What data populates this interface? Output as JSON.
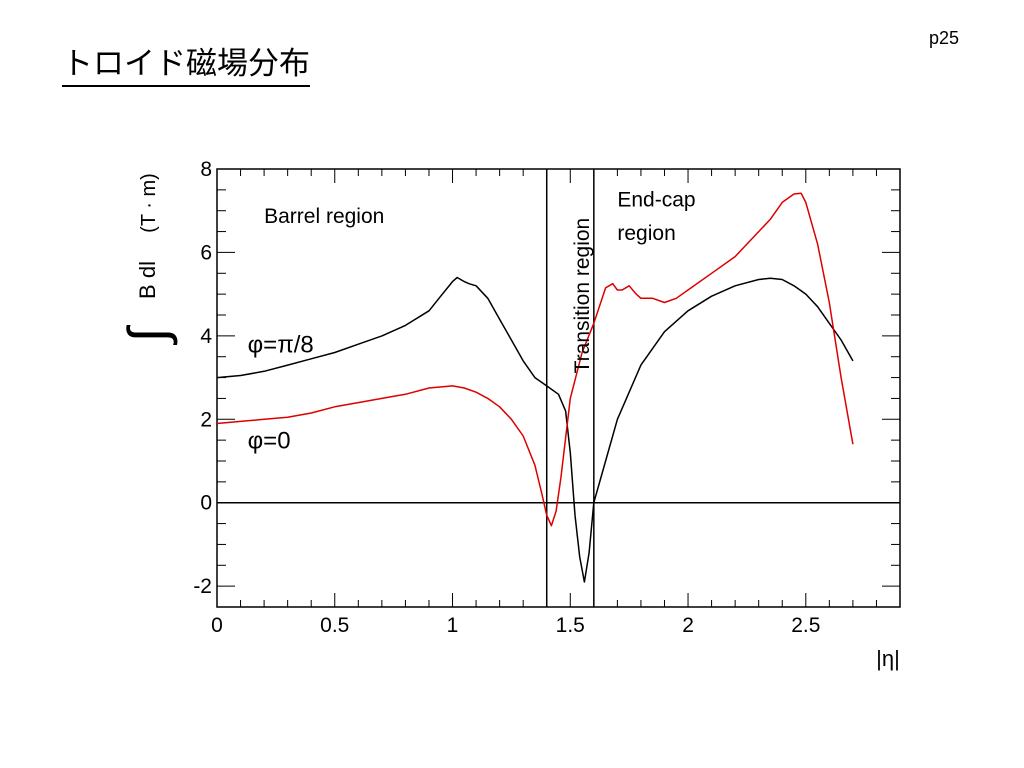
{
  "slide": {
    "title": "トロイド磁場分布",
    "page_number": "p25"
  },
  "chart_data": {
    "type": "line",
    "title": "",
    "xlabel": "|η|",
    "ylabel_integral": "∫",
    "ylabel": "B dl",
    "ylabel_unit": "(T · m)",
    "xlim": [
      0,
      2.9
    ],
    "ylim": [
      -2.5,
      8
    ],
    "x_ticks": [
      0,
      0.5,
      1,
      1.5,
      2,
      2.5
    ],
    "x_tick_labels": [
      "0",
      "0.5",
      "1",
      "1.5",
      "2",
      "2.5"
    ],
    "y_ticks": [
      -2,
      0,
      2,
      4,
      6,
      8
    ],
    "y_tick_labels": [
      "-2",
      "0",
      "2",
      "4",
      "6",
      "8"
    ],
    "grid": false,
    "reference_lines": {
      "horizontal_y": 0,
      "vertical_x": [
        1.4,
        1.6
      ]
    },
    "region_labels": [
      {
        "text": "Barrel region",
        "x": 0.2,
        "y": 6.7
      },
      {
        "text": "Transition region",
        "x": 1.55,
        "y": 3.1,
        "rotated": true
      },
      {
        "text": "End-cap",
        "x": 1.7,
        "y": 7.1
      },
      {
        "text": "region",
        "x": 1.7,
        "y": 6.3
      }
    ],
    "series": [
      {
        "name": "φ=π/8",
        "color": "#000000",
        "label_pos": {
          "x": 0.13,
          "y": 3.6
        },
        "x": [
          0,
          0.1,
          0.2,
          0.3,
          0.4,
          0.5,
          0.6,
          0.7,
          0.8,
          0.9,
          0.95,
          1.0,
          1.02,
          1.05,
          1.07,
          1.1,
          1.15,
          1.2,
          1.25,
          1.3,
          1.35,
          1.4,
          1.45,
          1.48,
          1.5,
          1.52,
          1.54,
          1.56,
          1.58,
          1.6,
          1.65,
          1.7,
          1.8,
          1.9,
          2.0,
          2.1,
          2.2,
          2.3,
          2.35,
          2.4,
          2.45,
          2.5,
          2.55,
          2.6,
          2.65,
          2.7
        ],
        "y": [
          3.0,
          3.05,
          3.15,
          3.3,
          3.45,
          3.6,
          3.8,
          4.0,
          4.25,
          4.6,
          4.95,
          5.3,
          5.4,
          5.3,
          5.25,
          5.2,
          4.9,
          4.4,
          3.9,
          3.4,
          3.0,
          2.8,
          2.6,
          2.2,
          1.2,
          -0.3,
          -1.3,
          -1.9,
          -1.2,
          0.0,
          1.0,
          2.0,
          3.3,
          4.1,
          4.6,
          4.95,
          5.2,
          5.35,
          5.38,
          5.35,
          5.2,
          5.0,
          4.7,
          4.3,
          3.9,
          3.4
        ]
      },
      {
        "name": "φ=0",
        "color": "#dd0000",
        "label_pos": {
          "x": 0.13,
          "y": 1.3
        },
        "x": [
          0,
          0.1,
          0.2,
          0.3,
          0.4,
          0.5,
          0.6,
          0.7,
          0.8,
          0.9,
          1.0,
          1.05,
          1.1,
          1.15,
          1.2,
          1.25,
          1.3,
          1.35,
          1.38,
          1.4,
          1.42,
          1.44,
          1.46,
          1.5,
          1.55,
          1.6,
          1.65,
          1.68,
          1.7,
          1.72,
          1.75,
          1.78,
          1.8,
          1.85,
          1.9,
          1.95,
          2.0,
          2.1,
          2.2,
          2.3,
          2.35,
          2.4,
          2.45,
          2.48,
          2.5,
          2.55,
          2.6,
          2.65,
          2.7
        ],
        "y": [
          1.9,
          1.95,
          2.0,
          2.05,
          2.15,
          2.3,
          2.4,
          2.5,
          2.6,
          2.75,
          2.8,
          2.75,
          2.65,
          2.5,
          2.3,
          2.0,
          1.6,
          0.9,
          0.2,
          -0.3,
          -0.55,
          -0.2,
          0.6,
          2.5,
          3.6,
          4.3,
          5.15,
          5.25,
          5.1,
          5.1,
          5.2,
          5.0,
          4.9,
          4.9,
          4.8,
          4.9,
          5.1,
          5.5,
          5.9,
          6.5,
          6.8,
          7.2,
          7.4,
          7.42,
          7.2,
          6.2,
          4.8,
          3.0,
          1.4
        ]
      }
    ]
  }
}
